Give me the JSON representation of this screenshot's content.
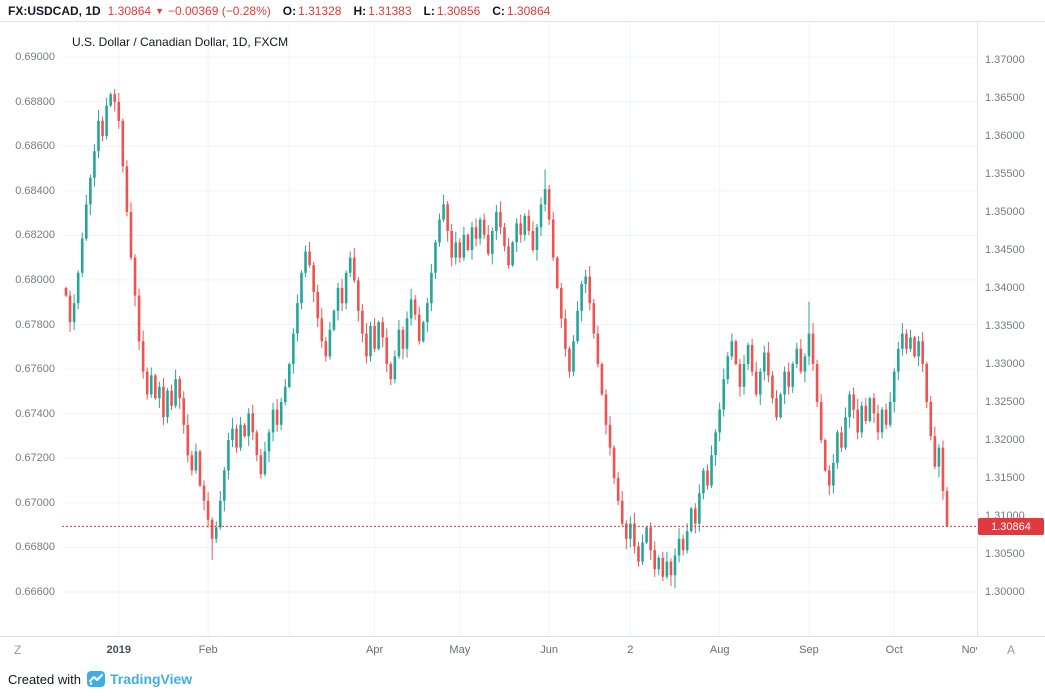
{
  "header": {
    "symbol": "FX:USDCAD, 1D",
    "last": "1.30864",
    "direction": "▼",
    "change": "−0.00369 (−0.28%)",
    "o_label": "O:",
    "o": "1.31328",
    "h_label": "H:",
    "h": "1.31383",
    "l_label": "L:",
    "l": "1.30856",
    "c_label": "C:",
    "c": "1.30864"
  },
  "chart_title": "U.S. Dollar / Canadian Dollar, 1D, FXCM",
  "axes": {
    "left_ticks": [
      "0.69000",
      "0.68800",
      "0.68600",
      "0.68400",
      "0.68200",
      "0.68000",
      "0.67800",
      "0.67600",
      "0.67400",
      "0.67200",
      "0.67000",
      "0.66800",
      "0.66600"
    ],
    "right_ticks": [
      "1.37000",
      "1.36500",
      "1.36000",
      "1.35500",
      "1.35000",
      "1.34500",
      "1.34000",
      "1.33500",
      "1.33000",
      "1.32500",
      "1.32000",
      "1.31500",
      "1.31000",
      "1.30500",
      "1.30000"
    ],
    "x_labels": [
      {
        "text": "2019",
        "i": 13,
        "bold": true
      },
      {
        "text": "Feb",
        "i": 35
      },
      {
        "text": "Apr",
        "i": 76
      },
      {
        "text": "May",
        "i": 97
      },
      {
        "text": "Jun",
        "i": 119
      },
      {
        "text": "2",
        "i": 139
      },
      {
        "text": "Aug",
        "i": 161
      },
      {
        "text": "Sep",
        "i": 183
      },
      {
        "text": "Oct",
        "i": 204
      },
      {
        "text": "Nov",
        "i": 223
      }
    ],
    "corner_left": "Z",
    "corner_right": "A"
  },
  "price_line": {
    "value": 1.30864,
    "label": "1.30864"
  },
  "chart_data": {
    "type": "candlestick",
    "title": "U.S. Dollar / Canadian Dollar, 1D, FXCM",
    "symbol": "USDCAD",
    "timeframe": "1D",
    "exchange": "FXCM",
    "right_axis_range": [
      1.3,
      1.37
    ],
    "left_axis_range": [
      0.666,
      0.69
    ],
    "last_price": 1.30864,
    "first_open": 1.34,
    "closes": [
      1.339,
      1.3355,
      1.338,
      1.342,
      1.3465,
      1.351,
      1.3545,
      1.358,
      1.362,
      1.36,
      1.364,
      1.3655,
      1.3645,
      1.362,
      1.356,
      1.35,
      1.344,
      1.339,
      1.333,
      1.329,
      1.326,
      1.3285,
      1.3255,
      1.327,
      1.323,
      1.3265,
      1.3245,
      1.328,
      1.3255,
      1.322,
      1.318,
      1.316,
      1.3185,
      1.314,
      1.312,
      1.3095,
      1.307,
      1.3085,
      1.312,
      1.316,
      1.32,
      1.3215,
      1.319,
      1.322,
      1.3205,
      1.3235,
      1.321,
      1.318,
      1.3155,
      1.3185,
      1.321,
      1.324,
      1.322,
      1.325,
      1.327,
      1.33,
      1.334,
      1.338,
      1.342,
      1.3448,
      1.343,
      1.3395,
      1.336,
      1.333,
      1.331,
      1.3345,
      1.337,
      1.34,
      1.338,
      1.342,
      1.344,
      1.341,
      1.337,
      1.334,
      1.331,
      1.335,
      1.332,
      1.3355,
      1.3335,
      1.33,
      1.328,
      1.331,
      1.3345,
      1.332,
      1.336,
      1.3385,
      1.3365,
      1.333,
      1.3355,
      1.338,
      1.342,
      1.346,
      1.349,
      1.351,
      1.3475,
      1.344,
      1.346,
      1.344,
      1.347,
      1.345,
      1.348,
      1.3465,
      1.349,
      1.347,
      1.3445,
      1.3475,
      1.35,
      1.348,
      1.3455,
      1.343,
      1.346,
      1.3485,
      1.347,
      1.3495,
      1.3475,
      1.345,
      1.348,
      1.351,
      1.353,
      1.349,
      1.344,
      1.34,
      1.336,
      1.332,
      1.329,
      1.333,
      1.337,
      1.3405,
      1.3415,
      1.338,
      1.334,
      1.33,
      1.326,
      1.322,
      1.319,
      1.315,
      1.312,
      1.309,
      1.307,
      1.309,
      1.306,
      1.304,
      1.3065,
      1.3085,
      1.3055,
      1.303,
      1.3045,
      1.302,
      1.304,
      1.3022,
      1.3048,
      1.307,
      1.3055,
      1.308,
      1.311,
      1.309,
      1.313,
      1.316,
      1.314,
      1.318,
      1.321,
      1.324,
      1.328,
      1.331,
      1.333,
      1.33,
      1.327,
      1.33,
      1.3325,
      1.329,
      1.326,
      1.329,
      1.3315,
      1.3285,
      1.3255,
      1.323,
      1.326,
      1.329,
      1.327,
      1.33,
      1.332,
      1.329,
      1.331,
      1.334,
      1.33,
      1.325,
      1.32,
      1.316,
      1.314,
      1.317,
      1.321,
      1.319,
      1.323,
      1.326,
      1.324,
      1.321,
      1.3245,
      1.3225,
      1.3255,
      1.3235,
      1.321,
      1.324,
      1.322,
      1.325,
      1.329,
      1.332,
      1.334,
      1.332,
      1.3335,
      1.331,
      1.333,
      1.33,
      1.325,
      1.3205,
      1.3165,
      1.319,
      1.3133,
      1.30864
    ],
    "last_candle": {
      "o": 1.31328,
      "h": 1.31383,
      "l": 1.30856,
      "c": 1.30864
    },
    "wick_overrides": {
      "36": {
        "l": 1.3042
      },
      "118": {
        "h": 1.3556
      },
      "150": {
        "l": 1.3005
      },
      "183": {
        "h": 1.3382
      }
    },
    "month_start_indices": [
      13,
      35,
      55,
      76,
      97,
      119,
      139,
      161,
      183,
      204
    ],
    "up_color": "#26a69a",
    "down_color": "#ef5350"
  },
  "footer": {
    "created_with": "Created with",
    "brand": "TradingView"
  },
  "colors": {
    "accent_red": "#e53935",
    "price_label_bg": "#e0393e",
    "grid": "#f0f3fa",
    "border": "#e0e3eb",
    "axis_text": "#787b86",
    "brand_blue": "#40aee3"
  }
}
